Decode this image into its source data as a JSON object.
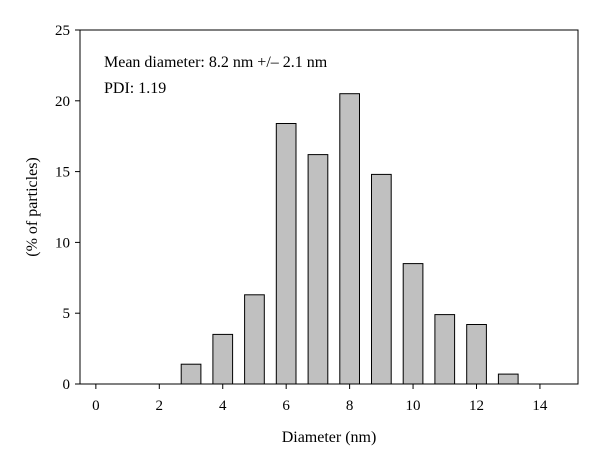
{
  "chart_data": {
    "type": "bar",
    "title": "",
    "xlabel": "Diameter (nm)",
    "ylabel": "(% of particles)",
    "xlim": [
      -0.5,
      15.2
    ],
    "ylim": [
      0,
      25
    ],
    "x_ticks": [
      0,
      2,
      4,
      6,
      8,
      10,
      12,
      14
    ],
    "y_ticks": [
      0,
      5,
      10,
      15,
      20,
      25
    ],
    "grid": false,
    "legend": "none",
    "bar_width": 0.62,
    "bar_color": "#c0c0c0",
    "bar_edge_color": "#000000",
    "annotations": [
      "Mean diameter: 8.2 nm +/–  2.1 nm",
      "PDI: 1.19"
    ],
    "x": [
      3,
      4,
      5,
      6,
      7,
      8,
      9,
      10,
      11,
      12,
      13
    ],
    "values": [
      1.4,
      3.5,
      6.3,
      18.4,
      16.2,
      20.5,
      14.8,
      8.5,
      4.9,
      4.2,
      0.7
    ]
  }
}
